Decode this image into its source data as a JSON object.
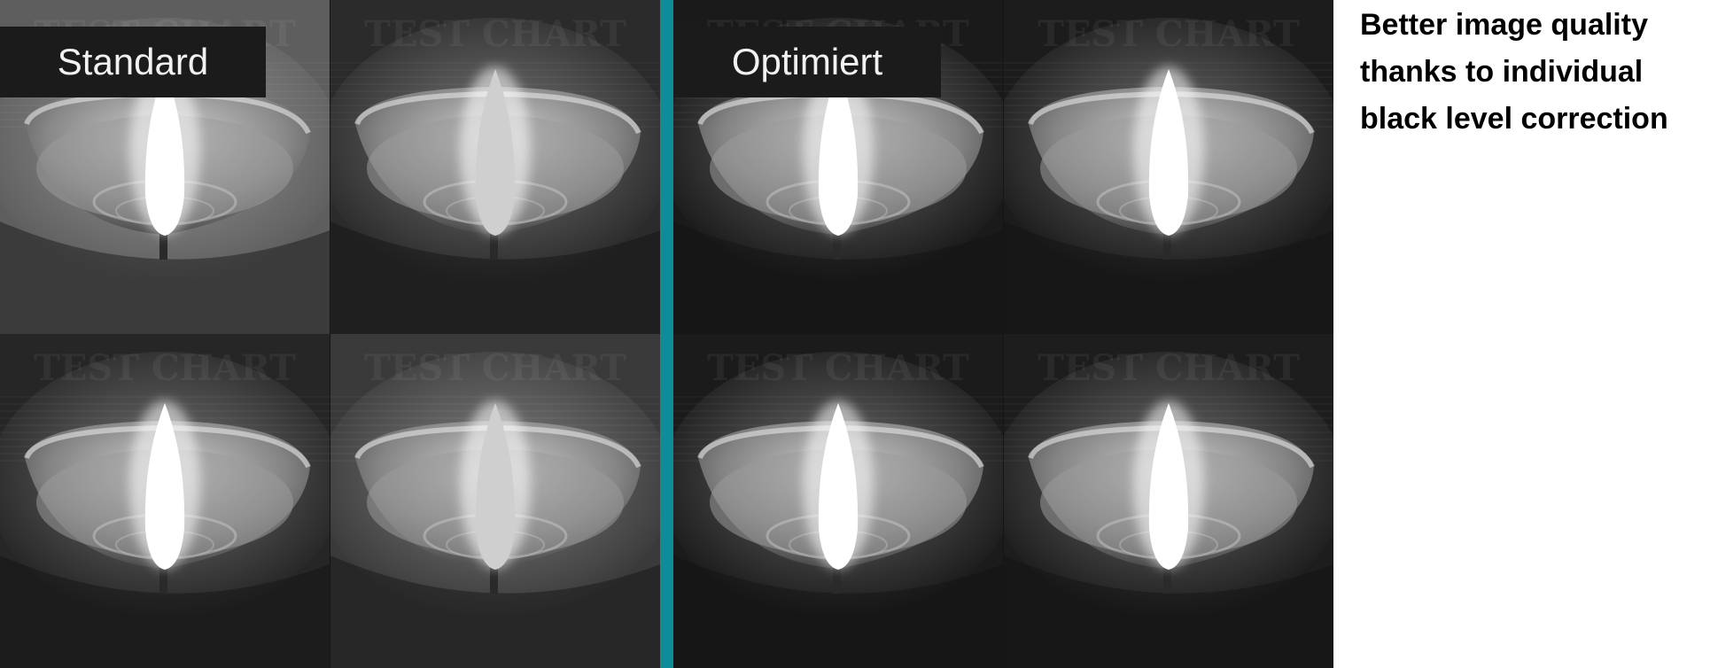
{
  "comparison": {
    "labels": {
      "standard": "Standard",
      "optimized": "Optimiert"
    },
    "colors": {
      "divider": "#0e8d98"
    },
    "background_text": "TEST CHART",
    "standard_tiles": [
      {
        "name": "standard-top-left",
        "bg": "#5e5e5e",
        "flame": "#ffffff"
      },
      {
        "name": "standard-top-right",
        "bg": "#2b2b2b",
        "flame": "#cfcfcf"
      },
      {
        "name": "standard-bottom-left",
        "bg": "#262626",
        "flame": "#ffffff"
      },
      {
        "name": "standard-bottom-right",
        "bg": "#3a3a3a",
        "flame": "#cfcfcf"
      }
    ],
    "optimized_tiles": [
      {
        "name": "optimized-top-left",
        "bg": "#1a1a1a",
        "flame": "#ffffff"
      },
      {
        "name": "optimized-top-right",
        "bg": "#1c1c1c",
        "flame": "#ffffff"
      },
      {
        "name": "optimized-bottom-left",
        "bg": "#1b1b1b",
        "flame": "#ffffff"
      },
      {
        "name": "optimized-bottom-right",
        "bg": "#1d1d1d",
        "flame": "#ffffff"
      }
    ]
  },
  "caption": {
    "line1": "Better image quality",
    "line2": "thanks to individual",
    "line3": "black level correction"
  }
}
